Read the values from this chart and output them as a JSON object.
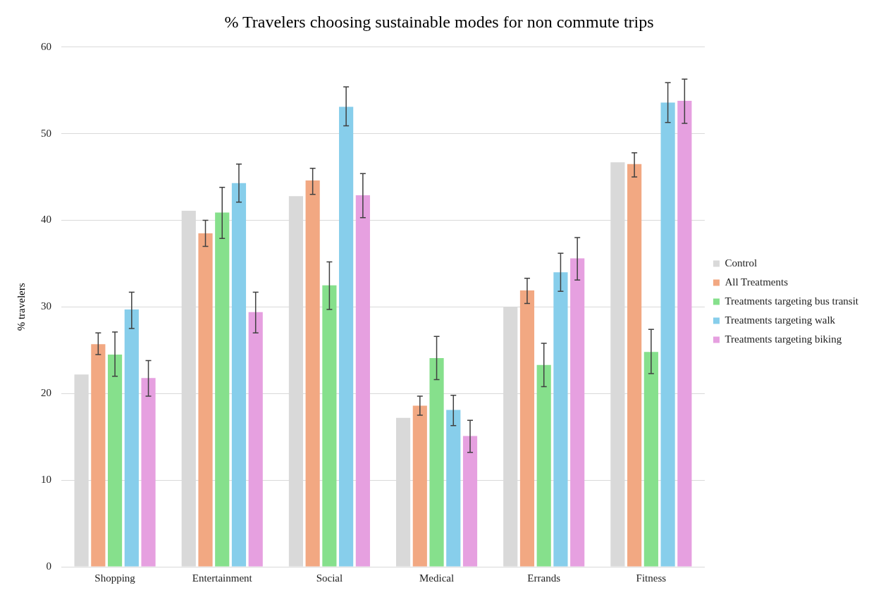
{
  "chart_data": {
    "type": "bar",
    "title": "% Travelers choosing sustainable modes for non commute trips",
    "ylabel": "% travelers",
    "categories": [
      "Shopping",
      "Entertainment",
      "Social",
      "Medical",
      "Errands",
      "Fitness"
    ],
    "series": [
      {
        "name": "Control",
        "color": "#d9d9d9",
        "values": [
          22.2,
          41.1,
          42.8,
          17.2,
          30.0,
          46.7
        ]
      },
      {
        "name": "All Treatments",
        "color": "#f2a882",
        "values": [
          25.7,
          38.5,
          44.6,
          18.6,
          31.9,
          46.5
        ],
        "errors": [
          [
            24.5,
            27.0
          ],
          [
            37.0,
            40.0
          ],
          [
            43.0,
            46.0
          ],
          [
            17.5,
            19.7
          ],
          [
            30.4,
            33.3
          ],
          [
            45.0,
            47.8
          ]
        ]
      },
      {
        "name": "Treatments targeting bus transit",
        "color": "#86e08c",
        "values": [
          24.5,
          40.9,
          32.5,
          24.1,
          23.3,
          24.8
        ],
        "errors": [
          [
            22.0,
            27.1
          ],
          [
            37.9,
            43.8
          ],
          [
            29.7,
            35.2
          ],
          [
            21.6,
            26.6
          ],
          [
            20.8,
            25.8
          ],
          [
            22.3,
            27.4
          ]
        ]
      },
      {
        "name": "Treatments targeting walk",
        "color": "#87ceeb",
        "values": [
          29.7,
          44.3,
          53.1,
          18.1,
          34.0,
          53.6
        ],
        "errors": [
          [
            27.5,
            31.7
          ],
          [
            42.1,
            46.5
          ],
          [
            50.9,
            55.4
          ],
          [
            16.3,
            19.8
          ],
          [
            31.8,
            36.2
          ],
          [
            51.3,
            55.9
          ]
        ]
      },
      {
        "name": "Treatments targeting biking",
        "color": "#e6a0e0",
        "values": [
          21.8,
          29.4,
          42.9,
          15.1,
          35.6,
          53.8
        ],
        "errors": [
          [
            19.7,
            23.8
          ],
          [
            27.0,
            31.7
          ],
          [
            40.3,
            45.4
          ],
          [
            13.2,
            16.9
          ],
          [
            33.1,
            38.0
          ],
          [
            51.2,
            56.3
          ]
        ]
      }
    ],
    "ylim": [
      0,
      60
    ],
    "yticks": [
      0,
      10,
      20,
      30,
      40,
      50,
      60
    ],
    "grid": "y",
    "legend": "right"
  }
}
